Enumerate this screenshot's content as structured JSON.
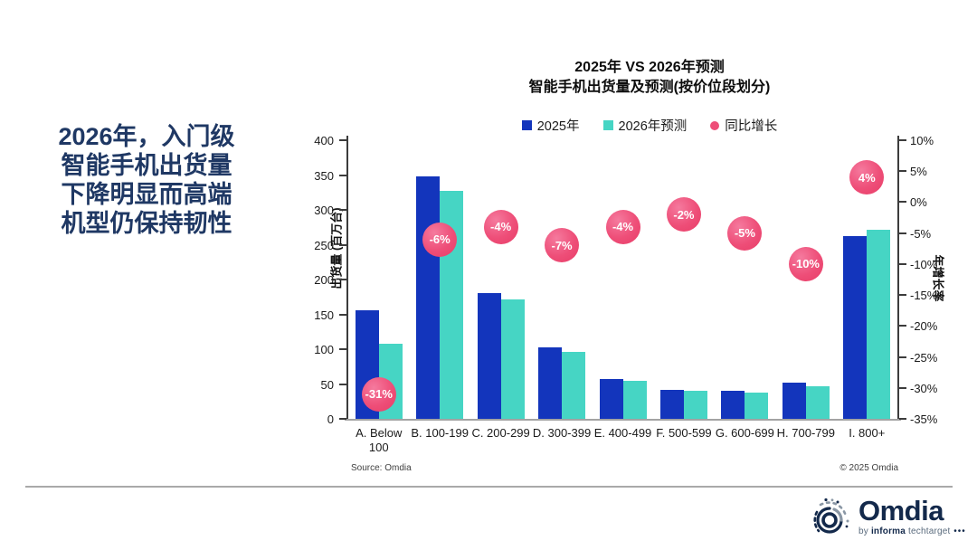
{
  "headline": {
    "lines": [
      "2026年，入门级",
      "智能手机出货量",
      "下降明显而高端",
      "机型仍保持韧性"
    ]
  },
  "header": {
    "title_line1": "2025年 VS 2026年预测",
    "title_line2": "智能手机出货量及预测(按价位段划分)"
  },
  "chart_data": {
    "type": "bar",
    "title": "2025年 VS 2026年预测 智能手机出货量及预测(按价位段划分)",
    "categories": [
      "A. Below 100",
      "B. 100-199",
      "C. 200-299",
      "D. 300-399",
      "E. 400-499",
      "F. 500-599",
      "G. 600-699",
      "H. 700-799",
      "I. 800+"
    ],
    "series": [
      {
        "name": "2025年",
        "type": "bar",
        "color": "#1335BC",
        "values": [
          156,
          348,
          180,
          103,
          57,
          41,
          40,
          52,
          262
        ]
      },
      {
        "name": "2026年预测",
        "type": "bar",
        "color": "#46D5C4",
        "values": [
          108,
          327,
          172,
          96,
          55,
          40,
          38,
          47,
          272
        ]
      },
      {
        "name": "同比增长",
        "type": "bubble",
        "color": "#EE4E78",
        "values": [
          -31,
          -6,
          -4,
          -7,
          -4,
          -2,
          -5,
          -10,
          4
        ],
        "labels": [
          "-31%",
          "-6%",
          "-4%",
          "-7%",
          "-4%",
          "-2%",
          "-5%",
          "-10%",
          "4%"
        ]
      }
    ],
    "y_left": {
      "label": "出货量 (百万台)",
      "min": 0,
      "max": 400,
      "step": 50
    },
    "y_right": {
      "label": "年增长率",
      "min": -35,
      "max": 10,
      "step": 5,
      "suffix": "%"
    },
    "legend_position": "top",
    "grid": false
  },
  "footer": {
    "source": "Source: Omdia",
    "copyright": "© 2025 Omdia",
    "logo_name": "Omdia",
    "logo_by": "by ",
    "logo_informa": "informa",
    "logo_techtarget": " techtarget",
    "logo_dots": " •••"
  }
}
